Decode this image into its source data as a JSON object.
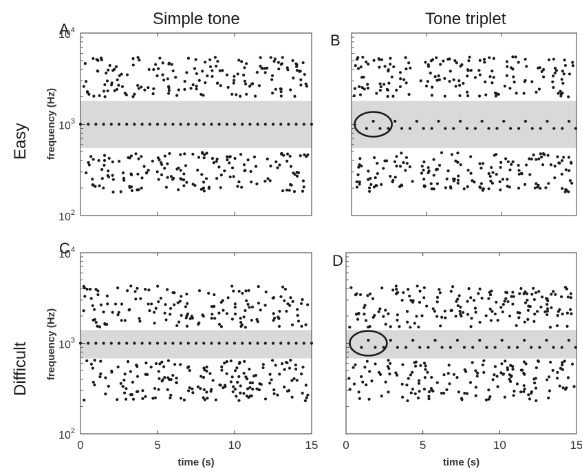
{
  "column_titles": [
    "Simple tone",
    "Tone triplet"
  ],
  "row_titles": [
    "Easy",
    "Difficult"
  ],
  "panel_letters": [
    "A",
    "B",
    "C",
    "D"
  ],
  "axis": {
    "ylabel": "frequency (Hz)",
    "xlabel": "time (s)",
    "y_tick_labels": [
      {
        "base": "10",
        "exp": "4"
      },
      {
        "base": "10",
        "exp": "3"
      },
      {
        "base": "10",
        "exp": "2"
      }
    ],
    "x_tick_labels": [
      "0",
      "5",
      "10",
      "15"
    ]
  },
  "colors": {
    "band": "#d9d9d9",
    "dot": "#1a1a1a",
    "axis": "#333333"
  },
  "chart_data": [
    {
      "panel": "A",
      "type": "scatter",
      "condition": "Simple tone / Easy",
      "xlim": [
        0,
        15
      ],
      "ylim": [
        100,
        10000
      ],
      "yscale": "log",
      "band": [
        550,
        1800
      ],
      "target": {
        "x_start": 0.0,
        "x_step": 0.5,
        "count": 31,
        "frequency": 1000,
        "grouping": 1
      },
      "distractors": {
        "count": 330,
        "upper_range": [
          2000,
          5500
        ],
        "lower_range": [
          180,
          500
        ]
      }
    },
    {
      "panel": "B",
      "type": "scatter",
      "condition": "Tone triplet / Easy",
      "xlim": [
        0,
        15
      ],
      "ylim": [
        100,
        10000
      ],
      "yscale": "log",
      "band": [
        550,
        1800
      ],
      "target": {
        "x_start": 1.0,
        "x_step": 0.45,
        "count": 3,
        "frequency": 1000,
        "grouping": 3,
        "group_period": 1.45,
        "groups": 10,
        "circled_group": 1,
        "alternating": [
          0.9,
          1.08
        ]
      },
      "distractors": {
        "count": 330,
        "upper_range": [
          2000,
          5500
        ],
        "lower_range": [
          180,
          500
        ]
      }
    },
    {
      "panel": "C",
      "type": "scatter",
      "condition": "Simple tone / Difficult",
      "xlim": [
        0,
        15
      ],
      "ylim": [
        100,
        10000
      ],
      "yscale": "log",
      "band": [
        680,
        1400
      ],
      "target": {
        "x_start": 0.0,
        "x_step": 0.5,
        "count": 31,
        "frequency": 1000,
        "grouping": 1
      },
      "distractors": {
        "count": 330,
        "upper_range": [
          1500,
          4300
        ],
        "lower_range": [
          230,
          650
        ]
      }
    },
    {
      "panel": "D",
      "type": "scatter",
      "condition": "Tone triplet / Difficult",
      "xlim": [
        0,
        15
      ],
      "ylim": [
        100,
        10000
      ],
      "yscale": "log",
      "band": [
        680,
        1400
      ],
      "target": {
        "x_start": 1.0,
        "x_step": 0.45,
        "count": 3,
        "frequency": 1000,
        "grouping": 3,
        "group_period": 1.45,
        "groups": 10,
        "circled_group": 1,
        "alternating": [
          0.9,
          1.08
        ]
      },
      "distractors": {
        "count": 330,
        "upper_range": [
          1500,
          4300
        ],
        "lower_range": [
          230,
          650
        ]
      }
    }
  ]
}
